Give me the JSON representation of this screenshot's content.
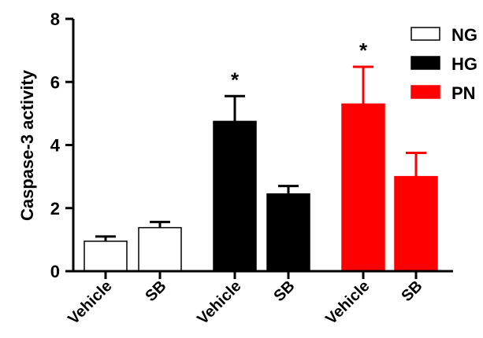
{
  "chart_data": {
    "type": "bar",
    "ylabel": "Caspase-3 activity",
    "xlabel": "",
    "ylim": [
      0,
      8
    ],
    "yticks": [
      0,
      2,
      4,
      6,
      8
    ],
    "categories": [
      "Vehicle",
      "SB",
      "Vehicle",
      "SB",
      "Vehicle",
      "SB"
    ],
    "groups": [
      {
        "name": "NG",
        "fill": "#ffffff",
        "stroke": "#000000",
        "error_color": "#000000"
      },
      {
        "name": "HG",
        "fill": "#000000",
        "stroke": "#000000",
        "error_color": "#000000"
      },
      {
        "name": "PN",
        "fill": "#ff0000",
        "stroke": "#ff0000",
        "error_color": "#ff0000"
      }
    ],
    "bars": [
      {
        "category": "Vehicle",
        "group": "NG",
        "value": 0.95,
        "error": 0.15,
        "annotation": ""
      },
      {
        "category": "SB",
        "group": "NG",
        "value": 1.38,
        "error": 0.18,
        "annotation": ""
      },
      {
        "category": "Vehicle",
        "group": "HG",
        "value": 4.75,
        "error": 0.8,
        "annotation": "*"
      },
      {
        "category": "SB",
        "group": "HG",
        "value": 2.45,
        "error": 0.25,
        "annotation": ""
      },
      {
        "category": "Vehicle",
        "group": "PN",
        "value": 5.3,
        "error": 1.18,
        "annotation": "*"
      },
      {
        "category": "SB",
        "group": "PN",
        "value": 3.0,
        "error": 0.75,
        "annotation": ""
      }
    ],
    "legend": {
      "position": "top-right",
      "entries": [
        "NG",
        "HG",
        "PN"
      ]
    },
    "grid": false
  }
}
